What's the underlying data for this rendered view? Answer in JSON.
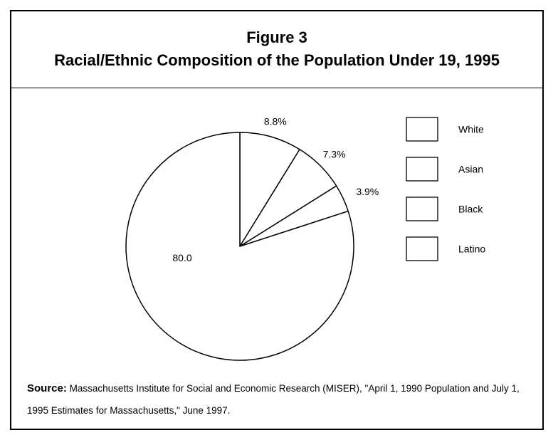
{
  "figure": {
    "number": "Figure 3",
    "title": "Racial/Ethnic Composition of the Population Under 19, 1995"
  },
  "chart_data": {
    "type": "pie",
    "title": "Racial/Ethnic Composition of the Population Under 19, 1995",
    "categories": [
      "White",
      "Asian",
      "Black",
      "Latino"
    ],
    "values": [
      80.0,
      8.8,
      7.3,
      3.9
    ],
    "slice_labels": [
      "80.0",
      "8.8%",
      "7.3%",
      "3.9%"
    ],
    "legend": {
      "placement": "right",
      "entries": [
        "White",
        "Asian",
        "Black",
        "Latino"
      ]
    },
    "slice_fill": "#ffffff",
    "stroke_color": "#000000"
  },
  "source": {
    "label": "Source:",
    "text": "Massachusetts Institute for Social and Economic Research (MISER), \"April 1, 1990 Population and July 1, 1995 Estimates for Massachusetts,\" June 1997."
  }
}
